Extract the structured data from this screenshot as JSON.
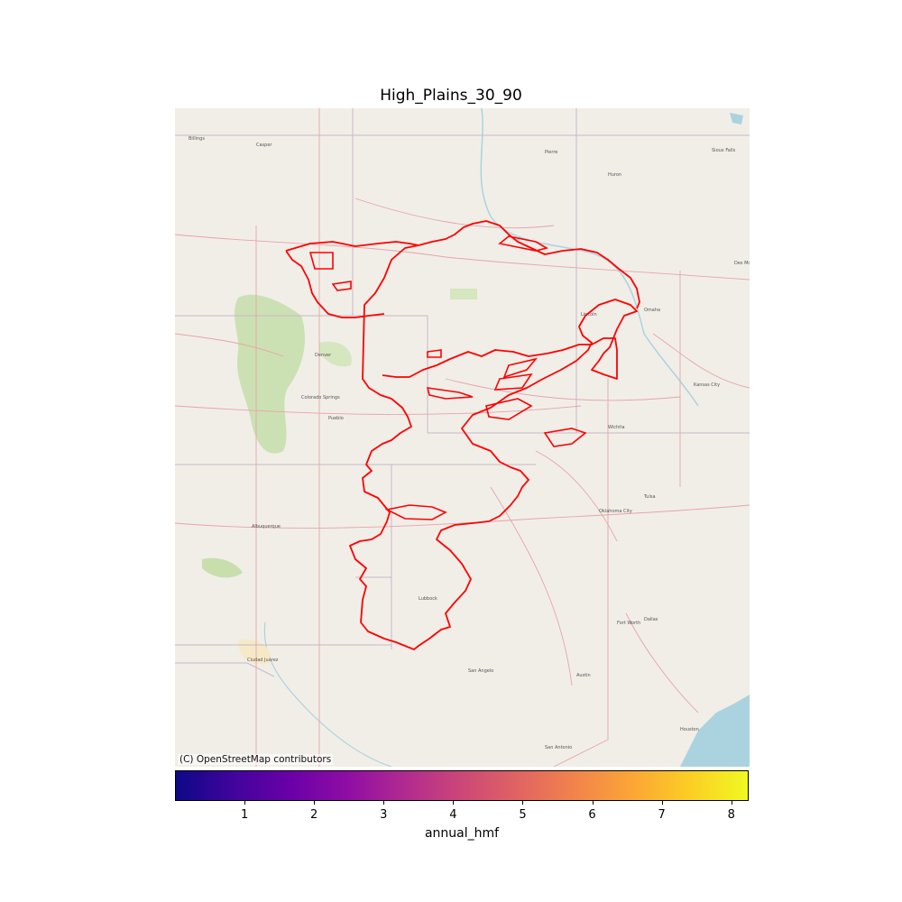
{
  "title": "High_Plains_30_90",
  "attribution": "(C) OpenStreetMap contributors",
  "basemap": "OpenStreetMap",
  "colorbar": {
    "label": "annual_hmf",
    "colormap": "plasma",
    "min": 0,
    "max": 8.25,
    "ticks": [
      "1",
      "2",
      "3",
      "4",
      "5",
      "6",
      "7",
      "8"
    ],
    "tick_values": [
      1,
      2,
      3,
      4,
      5,
      6,
      7,
      8
    ]
  },
  "overlay": {
    "name": "High Plains aquifer boundary",
    "stroke": "#ff0000"
  },
  "colors": {
    "land": "#f1eee8",
    "water": "#aad3df",
    "forest": "#c8dfad",
    "road": "#e8a3a8",
    "boundary": "#c8b8c8"
  }
}
